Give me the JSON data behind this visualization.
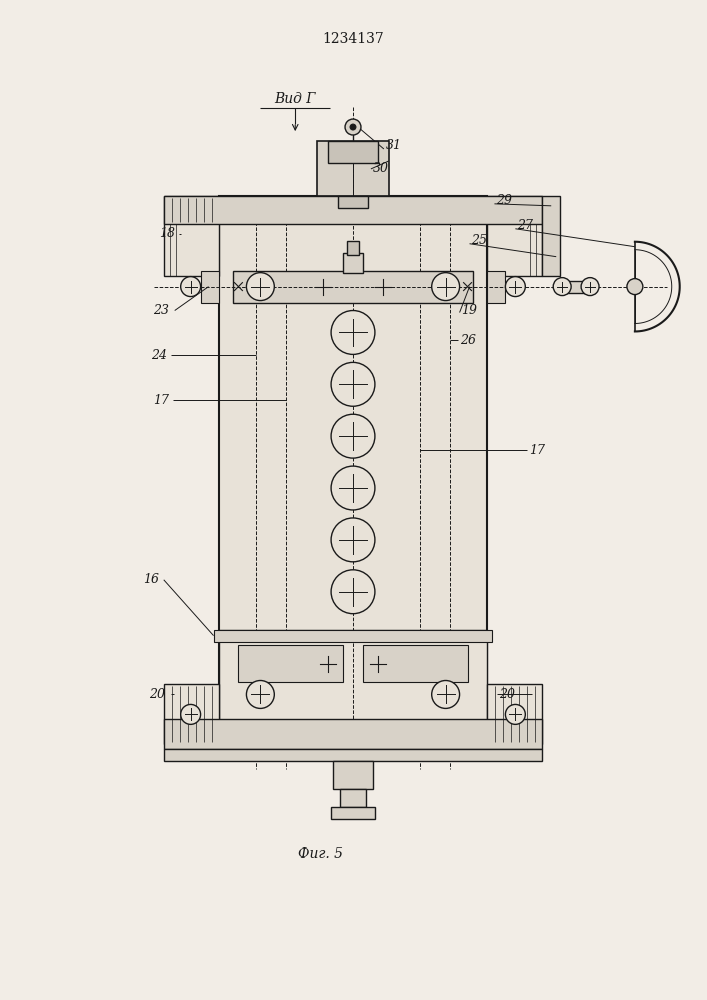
{
  "title": "1234137",
  "view_label": "Вид Г",
  "fig_label": "Фиг. 5",
  "bg_color": "#f2ede6",
  "line_color": "#1a1a1a",
  "fill_light": "#e8e2d8",
  "fill_mid": "#d8d2c8",
  "fill_dark": "#c8c2b8"
}
